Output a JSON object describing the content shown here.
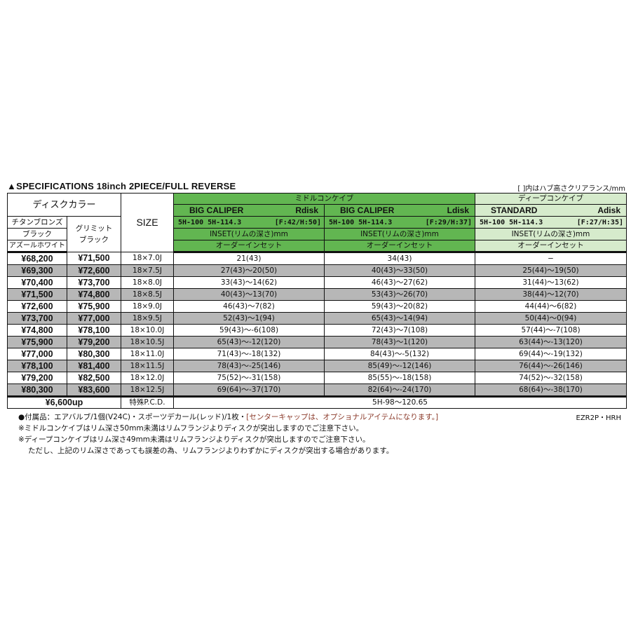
{
  "title": "▲SPECIFICATIONS 18inch  2PIECE/FULL REVERSE",
  "clearance_note": "[  ]内はハブ高さクリアランス/mm",
  "header": {
    "disk_color": "ディスクカラー",
    "size": "SIZE",
    "colors_a": [
      "チタンブロンズ",
      "ブラック",
      "アズールホワイト"
    ],
    "color_b": "グリミット\nブラック",
    "middle_group": "ミドルコンケイブ",
    "deep_group": "ディープコンケイブ",
    "discs": [
      {
        "name": "BIG CALIPER",
        "disk": "Rdisk",
        "pcd": "5H-100  5H-114.3",
        "clearance": "[F:42/H:50]"
      },
      {
        "name": "BIG CALIPER",
        "disk": "Ldisk",
        "pcd": "5H-100  5H-114.3",
        "clearance": "[F:29/H:37]"
      },
      {
        "name": "STANDARD",
        "disk": "Adisk",
        "pcd": "5H-100  5H-114.3",
        "clearance": "[F:27/H:35]"
      }
    ],
    "inset_label": "INSET(リムの深さ)mm",
    "order_label": "オーダーインセット"
  },
  "rows": [
    {
      "price_a": "¥68,200",
      "price_b": "¥71,500",
      "size": "18×7.0J",
      "r": "21(43)",
      "l": "34(43)",
      "a": "−"
    },
    {
      "price_a": "¥69,300",
      "price_b": "¥72,600",
      "size": "18×7.5J",
      "r": "27(43)〜20(50)",
      "l": "40(43)〜33(50)",
      "a": "25(44)〜19(50)"
    },
    {
      "price_a": "¥70,400",
      "price_b": "¥73,700",
      "size": "18×8.0J",
      "r": "33(43)〜14(62)",
      "l": "46(43)〜27(62)",
      "a": "31(44)〜13(62)"
    },
    {
      "price_a": "¥71,500",
      "price_b": "¥74,800",
      "size": "18×8.5J",
      "r": "40(43)〜13(70)",
      "l": "53(43)〜26(70)",
      "a": "38(44)〜12(70)"
    },
    {
      "price_a": "¥72,600",
      "price_b": "¥75,900",
      "size": "18×9.0J",
      "r": "46(43)〜7(82)",
      "l": "59(43)〜20(82)",
      "a": "44(44)〜6(82)"
    },
    {
      "price_a": "¥73,700",
      "price_b": "¥77,000",
      "size": "18×9.5J",
      "r": "52(43)〜1(94)",
      "l": "65(43)〜14(94)",
      "a": "50(44)〜0(94)"
    },
    {
      "price_a": "¥74,800",
      "price_b": "¥78,100",
      "size": "18×10.0J",
      "r": "59(43)〜-6(108)",
      "l": "72(43)〜7(108)",
      "a": "57(44)〜-7(108)"
    },
    {
      "price_a": "¥75,900",
      "price_b": "¥79,200",
      "size": "18×10.5J",
      "r": "65(43)〜-12(120)",
      "l": "78(43)〜1(120)",
      "a": "63(44)〜-13(120)"
    },
    {
      "price_a": "¥77,000",
      "price_b": "¥80,300",
      "size": "18×11.0J",
      "r": "71(43)〜-18(132)",
      "l": "84(43)〜-5(132)",
      "a": "69(44)〜-19(132)"
    },
    {
      "price_a": "¥78,100",
      "price_b": "¥81,400",
      "size": "18×11.5J",
      "r": "78(43)〜-25(146)",
      "l": "85(49)〜-12(146)",
      "a": "76(44)〜-26(146)"
    },
    {
      "price_a": "¥79,200",
      "price_b": "¥82,500",
      "size": "18×12.0J",
      "r": "75(52)〜-31(158)",
      "l": "85(55)〜-18(158)",
      "a": "74(52)〜-32(158)"
    },
    {
      "price_a": "¥80,300",
      "price_b": "¥83,600",
      "size": "18×12.5J",
      "r": "69(64)〜-37(170)",
      "l": "82(64)〜-24(170)",
      "a": "68(64)〜-38(170)"
    }
  ],
  "special_pcd": {
    "price": "¥6,600up",
    "label": "特殊P.C.D.",
    "range": "5H-98〜120.65"
  },
  "footnotes": {
    "accessories": "●付属品：エアバルブ/1個(V24C)・スポーツデカール(レッド)/1枚・",
    "accessories_note": "[センターキャップは、オプショナルアイテムになります。]",
    "middle_warning": "※ミドルコンケイブはリム深さ50mm未満はリムフランジよりディスクが突出しますのでご注意下さい。",
    "deep_warning": "※ディープコンケイブはリム深さ49mm未満はリムフランジよりディスクが突出しますのでご注意下さい。",
    "tolerance": "ただし、上記のリム深さであっても誤差の為、リムフランジよりわずかにディスクが突出する場合があります。"
  },
  "model_code": "EZR2P・HRH",
  "colors": {
    "dark_green": "#62b651",
    "light_green": "#d6ebcc",
    "gray_row": "#b7b7b7",
    "note_brown": "#8b3a2a"
  }
}
